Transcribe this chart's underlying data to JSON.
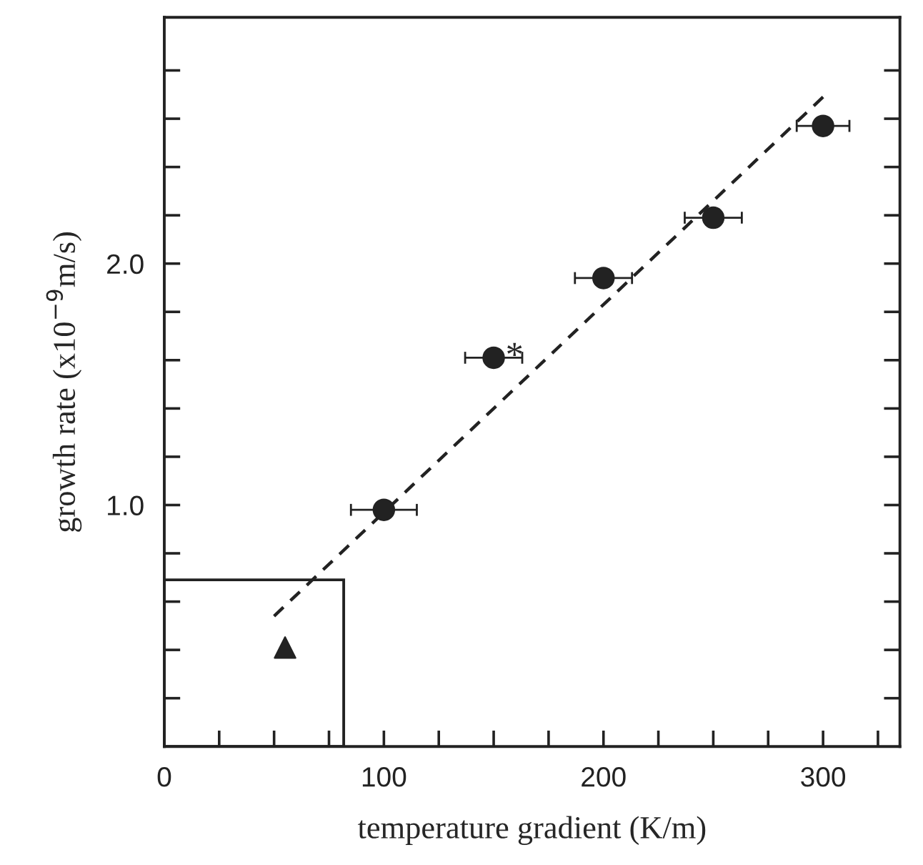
{
  "chart_data": {
    "type": "scatter",
    "xlabel": "temperature gradient (K/m)",
    "ylabel": "growth rate (x10$^{−9}$m/s)",
    "xlim": [
      0,
      335
    ],
    "ylim": [
      0,
      3.02
    ],
    "xticks": [
      0,
      {
        "value": 25,
        "label": null
      },
      {
        "value": 50,
        "label": null
      },
      {
        "value": 75,
        "label": null
      },
      100,
      {
        "value": 125,
        "label": null
      },
      {
        "value": 150,
        "label": null
      },
      {
        "value": 175,
        "label": null
      },
      200,
      {
        "value": 225,
        "label": null
      },
      {
        "value": 250,
        "label": null
      },
      {
        "value": 275,
        "label": null
      },
      300,
      {
        "value": 325,
        "label": null
      }
    ],
    "yticks": [
      {
        "value": 0.2,
        "label": null
      },
      {
        "value": 0.4,
        "label": null
      },
      {
        "value": 0.6,
        "label": null
      },
      {
        "value": 0.8,
        "label": null
      },
      {
        "value": 1.0,
        "label": "1.0"
      },
      {
        "value": 1.2,
        "label": null
      },
      {
        "value": 1.4,
        "label": null
      },
      {
        "value": 1.6,
        "label": null
      },
      {
        "value": 1.8,
        "label": null
      },
      {
        "value": 2.0,
        "label": "2.0"
      },
      {
        "value": 2.2,
        "label": null
      },
      {
        "value": 2.4,
        "label": null
      },
      {
        "value": 2.6,
        "label": null
      },
      {
        "value": 2.8,
        "label": null
      }
    ],
    "grid": false,
    "legend": false,
    "series": [
      {
        "type": "scatter",
        "marker": "circle",
        "color": "#222222",
        "x": [
          100,
          150,
          200,
          250,
          300
        ],
        "values": [
          0.98,
          1.61,
          1.94,
          2.19,
          2.57
        ],
        "xerrors": [
          15,
          13,
          13,
          13,
          12
        ]
      },
      {
        "type": "scatter",
        "marker": "triangle",
        "color": "#222222",
        "x": [
          55
        ],
        "values": [
          0.41
        ]
      },
      {
        "type": "line",
        "line_style": "dashed",
        "color": "#222222",
        "x": [
          50,
          300
        ],
        "values": [
          0.54,
          2.69
        ]
      }
    ],
    "annotations": [
      {
        "text": "*",
        "x": 150,
        "y": 1.61
      }
    ]
  }
}
